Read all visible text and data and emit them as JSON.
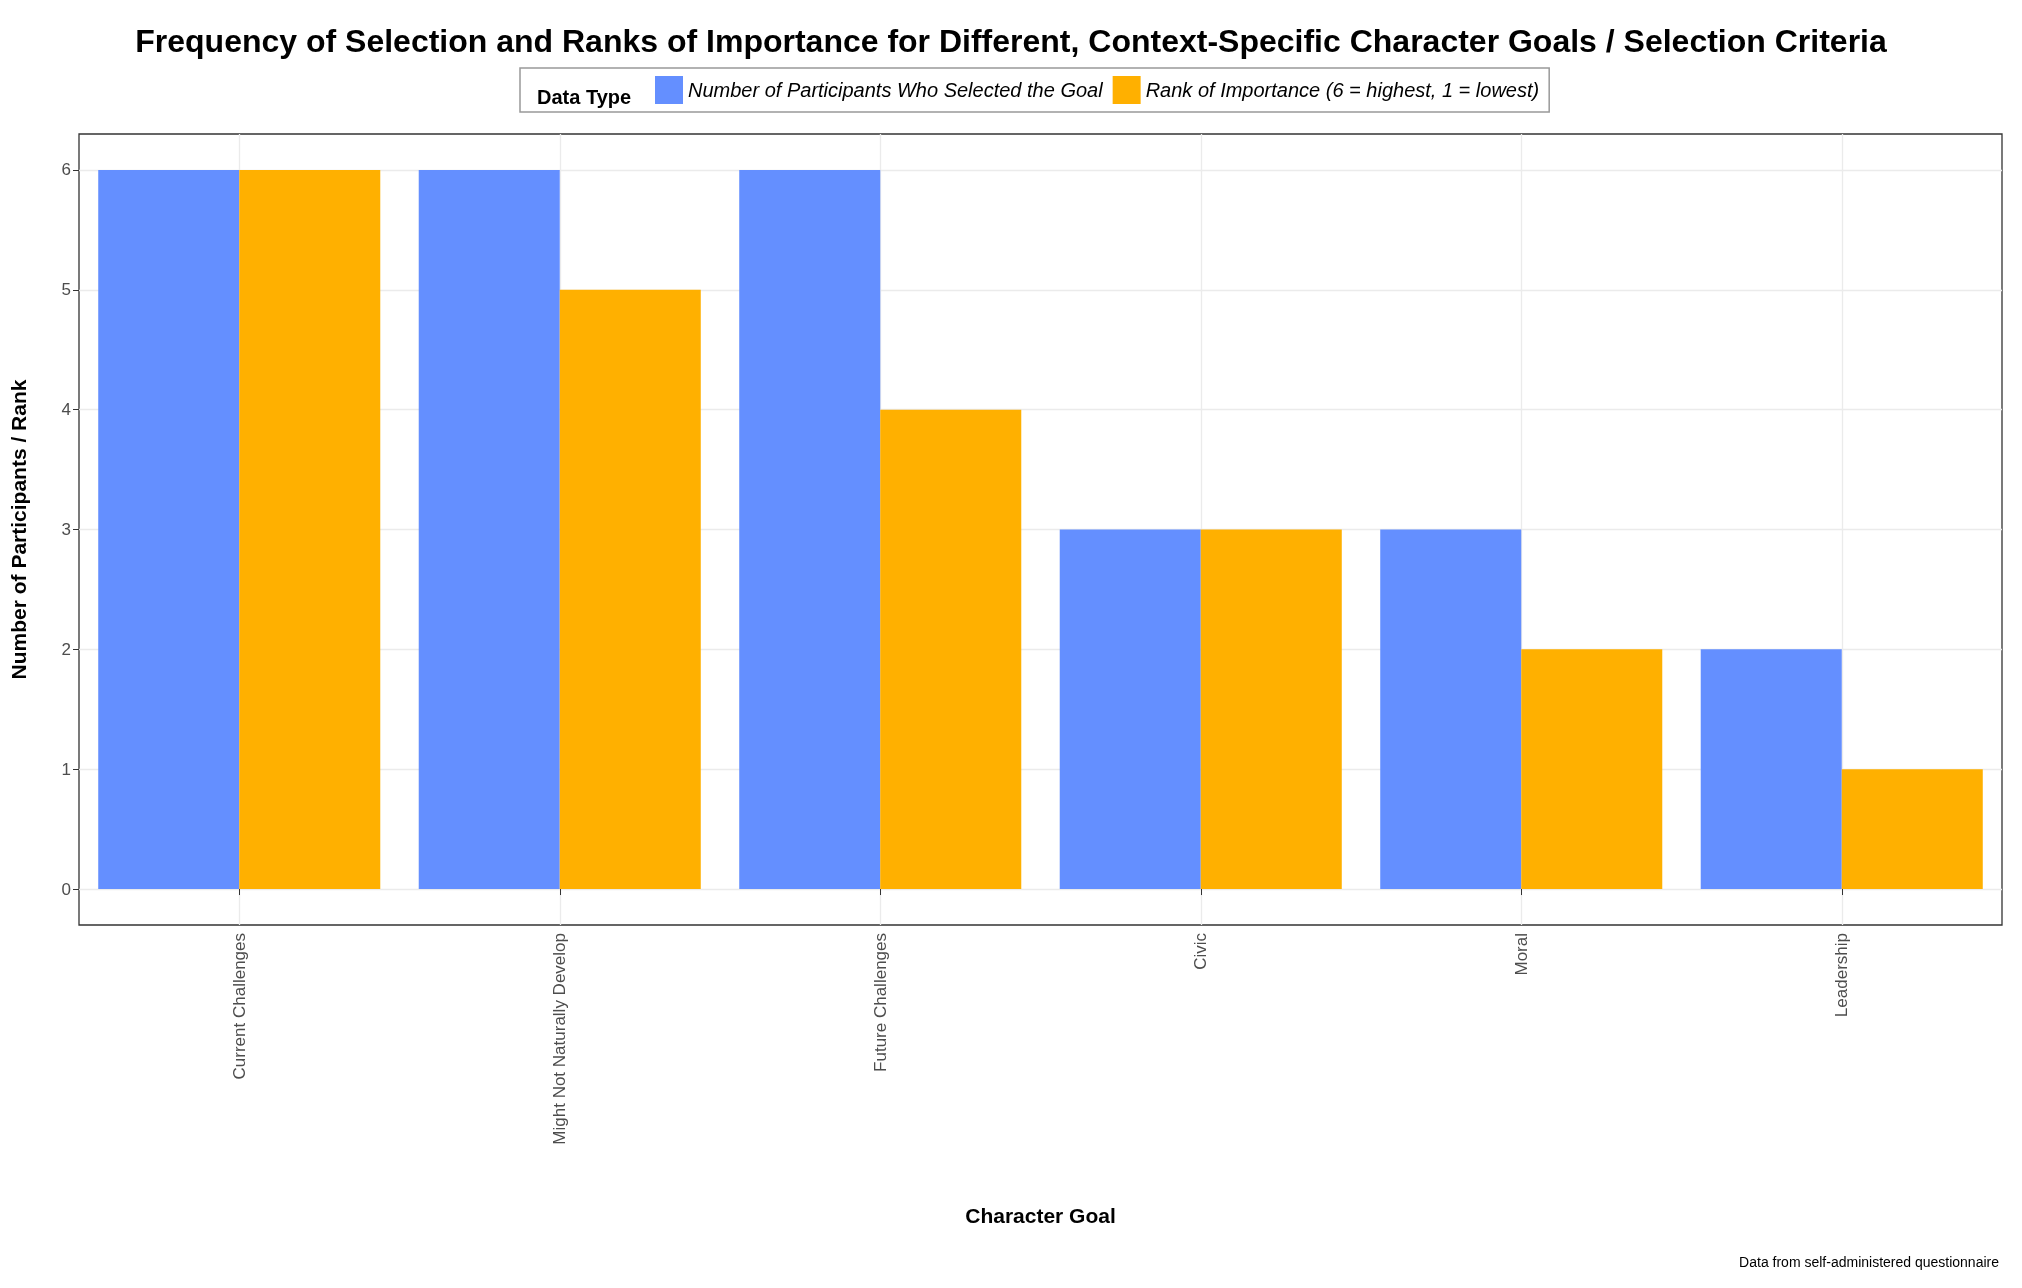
{
  "chart_data": {
    "type": "bar",
    "title": "Frequency of Selection and Ranks of Importance for Different, Context-Specific Character Goals / Selection Criteria",
    "xlabel": "Character Goal",
    "ylabel": "Number of Participants / Rank",
    "legend_title": "Data Type",
    "legend": "top",
    "grid": true,
    "categories": [
      "Current Challenges",
      "Might Not Naturally Develop",
      "Future Challenges",
      "Civic",
      "Moral",
      "Leadership"
    ],
    "series": [
      {
        "name": "Number of Participants Who Selected the Goal",
        "color": "#648fff",
        "values": [
          6,
          6,
          6,
          3,
          3,
          2
        ]
      },
      {
        "name": "Rank of Importance (6 = highest, 1 = lowest)",
        "color": "#ffb000",
        "values": [
          6,
          5,
          4,
          3,
          2,
          1
        ]
      }
    ],
    "ylim": [
      -0.3,
      6.3
    ],
    "yticks": [
      0,
      1,
      2,
      3,
      4,
      5,
      6
    ],
    "annotations": [
      "Data from self-administered questionnaire"
    ]
  }
}
